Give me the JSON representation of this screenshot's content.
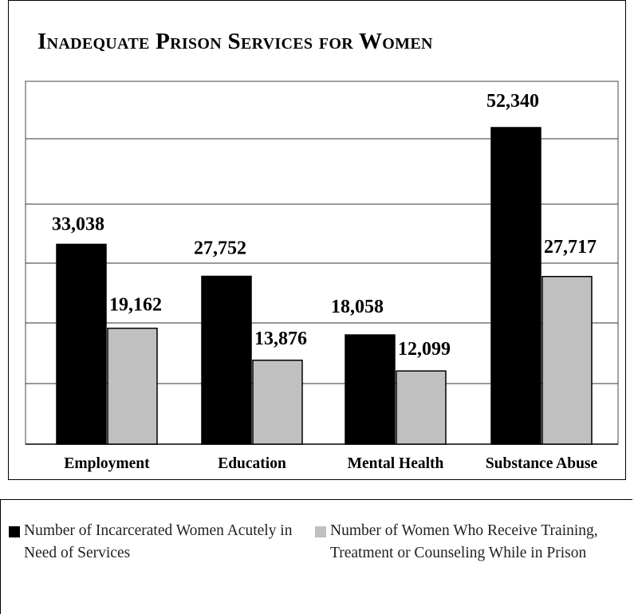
{
  "chart_data": {
    "type": "bar",
    "title": "Inadequate Prison Services for Women",
    "categories": [
      "Employment",
      "Education",
      "Mental Health",
      "Substance Abuse"
    ],
    "series": [
      {
        "name": "Number of Incarcerated Women Acutely in Need of Services",
        "color": "#000000",
        "values": [
          33038,
          27752,
          18058,
          52340
        ],
        "labels": [
          "33,038",
          "27,752",
          "18,058",
          "52,340"
        ]
      },
      {
        "name": "Number of Women Who Receive Training, Treatment or Counseling While in Prison",
        "color": "#c0c0c0",
        "values": [
          19162,
          13876,
          12099,
          27717
        ],
        "labels": [
          "19,162",
          "13,876",
          "12,099",
          "27,717"
        ]
      }
    ],
    "ylim": [
      0,
      52340
    ],
    "grid": true,
    "legend_position": "bottom",
    "xlabel": "",
    "ylabel": ""
  }
}
